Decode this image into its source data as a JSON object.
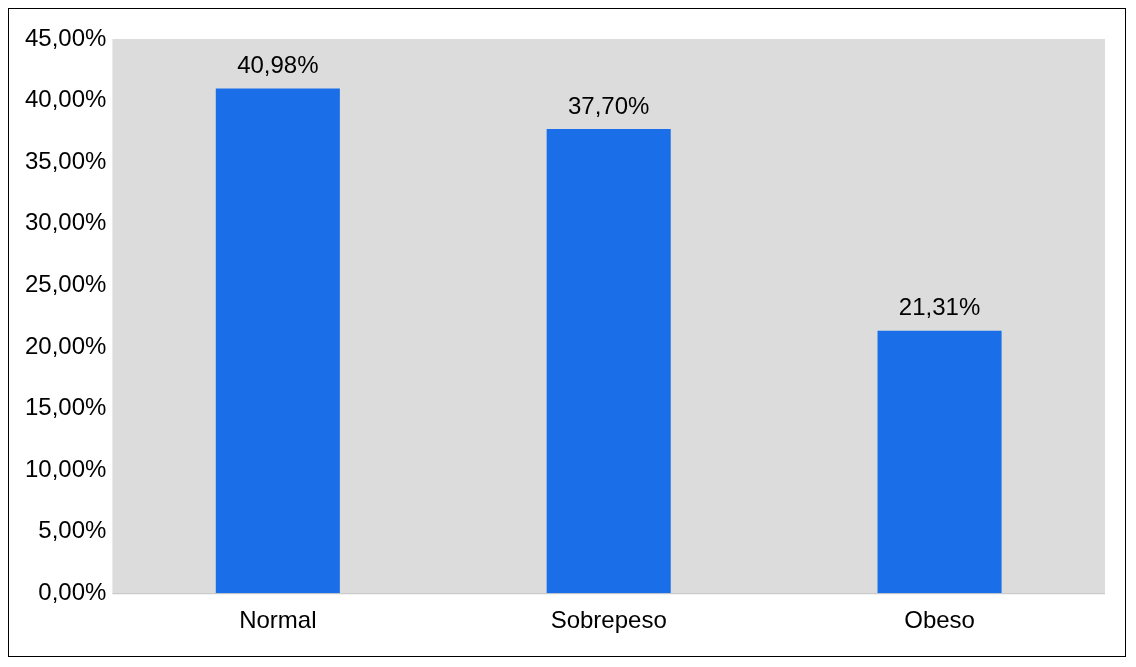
{
  "chart_data": {
    "type": "bar",
    "categories": [
      "Normal",
      "Sobrepeso",
      "Obeso"
    ],
    "series": [
      {
        "color": "#1a6ee8",
        "values": [
          40.98,
          37.7,
          21.31
        ],
        "value_labels": [
          "40,98%",
          "37,70%",
          "21,31%"
        ]
      }
    ],
    "ylim": [
      0,
      45
    ],
    "yticks": [
      {
        "value": 0,
        "label": "0,00%"
      },
      {
        "value": 5,
        "label": "5,00%"
      },
      {
        "value": 10,
        "label": "10,00%"
      },
      {
        "value": 15,
        "label": "15,00%"
      },
      {
        "value": 20,
        "label": "20,00%"
      },
      {
        "value": 25,
        "label": "25,00%"
      },
      {
        "value": 30,
        "label": "30,00%"
      },
      {
        "value": 35,
        "label": "35,00%"
      },
      {
        "value": 40,
        "label": "40,00%"
      },
      {
        "value": 45,
        "label": "45,00%"
      }
    ],
    "grid": false,
    "legend": false
  }
}
